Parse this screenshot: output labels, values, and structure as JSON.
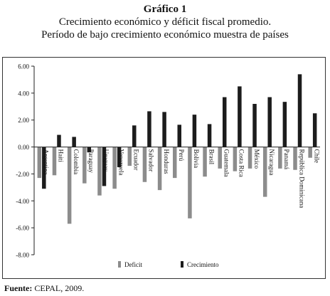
{
  "header": {
    "number": "Gráfico 1",
    "line1": "Crecimiento económico y déficit fiscal promedio.",
    "line2": "Período de bajo crecimiento económico muestra de países"
  },
  "source": {
    "label": "Fuente:",
    "text": "CEPAL, 2009."
  },
  "colors": {
    "deficit": "#8c8c8c",
    "crecimiento": "#1c1c1c"
  },
  "chart_data": {
    "type": "bar",
    "categories": [
      "Argentina",
      "Haití",
      "Colombia",
      "Paraguay",
      "Uruguay",
      "Venezuela",
      "Ecuador",
      "Salvador",
      "Honduras",
      "Perú",
      "Bolivia",
      "Brasil",
      "Guatemala",
      "Costa Rica",
      "México",
      "Nicaragua",
      "Panamá",
      "República Dominicana",
      "Chile"
    ],
    "series": [
      {
        "name": "Deficit",
        "values": [
          -2.3,
          -2.1,
          -5.7,
          -2.7,
          -3.6,
          -3.1,
          -1.4,
          -2.6,
          -3.2,
          -2.3,
          -5.3,
          -2.2,
          -1.6,
          -1.8,
          -1.6,
          -3.7,
          -1.6,
          -1.7,
          -0.8
        ]
      },
      {
        "name": "Crecimiento",
        "values": [
          -3.1,
          0.9,
          0.75,
          -0.4,
          -2.9,
          -1.5,
          1.6,
          2.65,
          2.6,
          1.65,
          2.4,
          1.7,
          3.7,
          4.5,
          3.2,
          3.7,
          3.35,
          5.4,
          2.5
        ]
      }
    ],
    "ylim": [
      -8,
      6
    ],
    "yticks": [
      "6.00",
      "4.00",
      "2.00",
      "0.00",
      "-2.00",
      "-4.00",
      "-6.00",
      "-8.00"
    ],
    "legend": "bottom"
  }
}
